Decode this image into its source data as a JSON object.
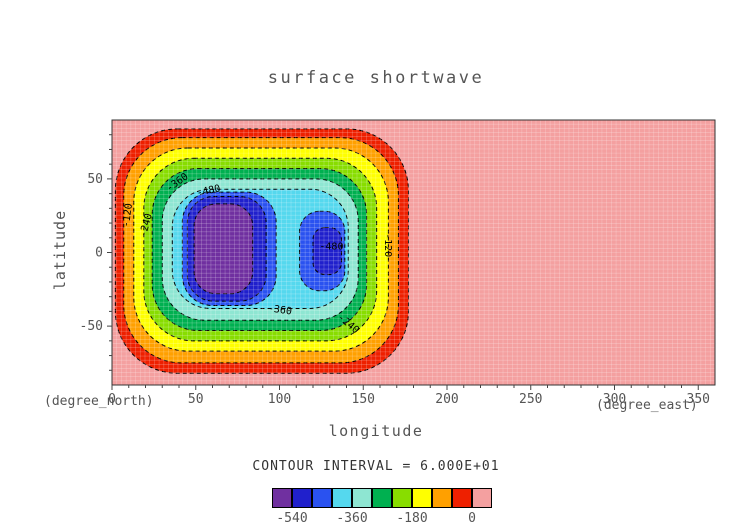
{
  "title": "surface shortwave",
  "axes": {
    "xlabel": "longitude",
    "ylabel": "latitude",
    "x_unit": "(degree_east)",
    "y_unit": "(degree_north)"
  },
  "contour_note": "CONTOUR INTERVAL = 6.000E+01",
  "chart_data": {
    "type": "contour",
    "title": "surface shortwave",
    "xlabel": "longitude (degree_east)",
    "ylabel": "latitude (degree_north)",
    "xlim": [
      0,
      360
    ],
    "ylim": [
      -90,
      90
    ],
    "xticks": [
      0,
      50,
      100,
      150,
      200,
      250,
      300,
      350
    ],
    "yticks": [
      -50,
      0,
      50
    ],
    "minor_tick_step": 10,
    "contour_interval": 60,
    "levels": [
      -600,
      -540,
      -480,
      -420,
      -360,
      -300,
      -240,
      -180,
      -120,
      -60,
      0
    ],
    "field_description": "negative shortwave anomaly region spanning lon 0-180, centered near lon 90 lat 0, minimum below -540; background near 0 elsewhere",
    "background": {
      "value_range": [
        0,
        60
      ],
      "color": "#f4a0a0"
    },
    "bands": [
      {
        "value_range": [
          -60,
          0
        ],
        "color": "#ee2000",
        "lon": [
          2,
          177
        ],
        "lat": [
          -82,
          84
        ],
        "rx": 62
      },
      {
        "value_range": [
          -120,
          -60
        ],
        "color": "#ffa000",
        "lon": [
          7,
          171
        ],
        "lat": [
          -75,
          78
        ],
        "rx": 58
      },
      {
        "value_range": [
          -180,
          -120
        ],
        "color": "#ffff00",
        "lon": [
          13,
          165
        ],
        "lat": [
          -67,
          71
        ],
        "rx": 54
      },
      {
        "value_range": [
          -240,
          -180
        ],
        "color": "#88dd00",
        "lon": [
          19,
          158
        ],
        "lat": [
          -60,
          64
        ],
        "rx": 50
      },
      {
        "value_range": [
          -300,
          -240
        ],
        "color": "#00b050",
        "lon": [
          24,
          152
        ],
        "lat": [
          -53,
          57
        ],
        "rx": 46
      },
      {
        "value_range": [
          -360,
          -300
        ],
        "color": "#8ee6d2",
        "lon": [
          30,
          147
        ],
        "lat": [
          -46,
          50
        ],
        "rx": 42
      },
      {
        "value_range": [
          -420,
          -360
        ],
        "color": "#55d8ee",
        "lon": [
          36,
          141
        ],
        "lat": [
          -38,
          43
        ],
        "rx": 38
      },
      {
        "value_range": [
          -480,
          -420
        ],
        "color": "#2a52f0",
        "lon": [
          42,
          98
        ],
        "lat": [
          -36,
          41
        ],
        "rx": 30
      },
      {
        "value_range": [
          -540,
          -480
        ],
        "color": "#2020cc",
        "lon": [
          45,
          92
        ],
        "lat": [
          -33,
          38
        ],
        "rx": 26
      },
      {
        "value_range": [
          -600,
          -540
        ],
        "color": "#7030a0",
        "lon": [
          49,
          84
        ],
        "lat": [
          -28,
          33
        ],
        "rx": 22
      },
      {
        "value_range": [
          -480,
          -420
        ],
        "color": "#2a52f0",
        "lon": [
          112,
          139
        ],
        "lat": [
          -26,
          28
        ],
        "rx": 20
      },
      {
        "value_range": [
          -540,
          -480
        ],
        "color": "#2020cc",
        "lon": [
          120,
          137
        ],
        "lat": [
          -15,
          17
        ],
        "rx": 12
      }
    ],
    "contour_labels": [
      {
        "text": "-120",
        "lon": 11,
        "lat": 25,
        "angle": -82
      },
      {
        "text": "-240",
        "lon": 22,
        "lat": 18,
        "angle": -75
      },
      {
        "text": "-360",
        "lon": 40,
        "lat": 46,
        "angle": -35
      },
      {
        "text": "-480",
        "lon": 58,
        "lat": 40,
        "angle": -12
      },
      {
        "text": "-360",
        "lon": 100,
        "lat": -41,
        "angle": 8
      },
      {
        "text": "-240",
        "lon": 140,
        "lat": -50,
        "angle": 40
      },
      {
        "text": "-480",
        "lon": 131,
        "lat": 2,
        "angle": 0
      },
      {
        "text": "-120",
        "lon": 163,
        "lat": 5,
        "angle": 90
      }
    ],
    "colorbar": {
      "colors": [
        "#7030a0",
        "#2020cc",
        "#2a52f0",
        "#55d8ee",
        "#8ee6d2",
        "#00b050",
        "#88dd00",
        "#ffff00",
        "#ffa000",
        "#ee2000",
        "#f4a0a0"
      ],
      "tick_labels": [
        "-540",
        "-360",
        "-180",
        "0"
      ],
      "tick_boundary_index": [
        1,
        4,
        7,
        10
      ]
    },
    "grid": {
      "nx": 128,
      "ny": 64,
      "color": "rgba(255,255,255,0.3)"
    },
    "contour_line_style": {
      "color": "#000000",
      "dash": "4,3",
      "width": 1
    }
  },
  "colors": {
    "text": "#555555",
    "frame": "#333333",
    "note_text": "#333333"
  }
}
